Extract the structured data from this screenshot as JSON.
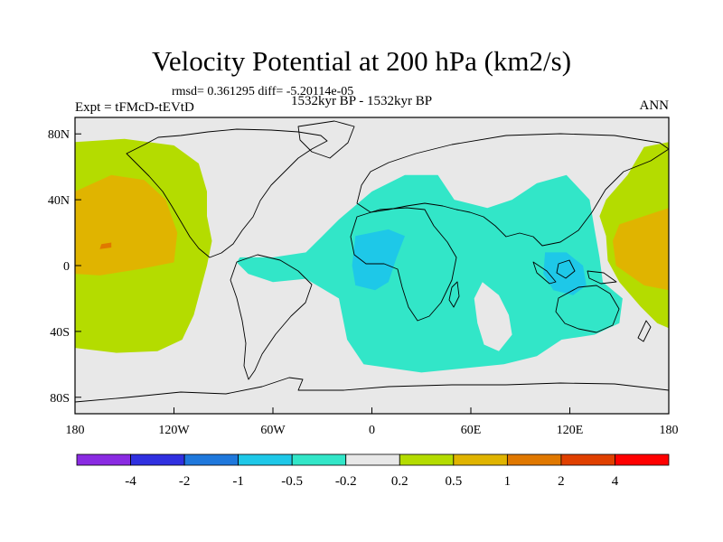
{
  "chart_data": {
    "type": "heatmap",
    "title": "Velocity Potential at 200 hPa (km2/s)",
    "stats_text": "rmsd= 0.361295 diff= -5.20114e-05",
    "left_label": "Expt = tFMcD-tEVtD",
    "center_label": "1532kyr BP - 1532kyr BP",
    "right_label": "ANN",
    "x_ticks": [
      "180",
      "120W",
      "60W",
      "0",
      "60E",
      "120E",
      "180"
    ],
    "x_tick_values": [
      -180,
      -120,
      -60,
      0,
      60,
      120,
      180
    ],
    "y_ticks": [
      "80N",
      "40N",
      "0",
      "40S",
      "80S"
    ],
    "y_tick_values": [
      80,
      40,
      0,
      -40,
      -80
    ],
    "xlim": [
      -180,
      180
    ],
    "ylim": [
      -90,
      90
    ],
    "colorbar": {
      "labels": [
        "-4",
        "-2",
        "-1",
        "-0.5",
        "-0.2",
        "0.2",
        "0.5",
        "1",
        "2",
        "4"
      ],
      "colors": [
        "#8a2be2",
        "#3030e0",
        "#1f78dc",
        "#1ec8e8",
        "#32e6c8",
        "#e8e8e8",
        "#b4dc00",
        "#e0b400",
        "#e07800",
        "#e04000",
        "#ff0000"
      ]
    },
    "regions": [
      {
        "name": "pacific-positive-0.2",
        "level": 0.2,
        "color": "#b4dc00",
        "outline": [
          [
            -180,
            75
          ],
          [
            -150,
            77
          ],
          [
            -120,
            73
          ],
          [
            -105,
            62
          ],
          [
            -100,
            45
          ],
          [
            -100,
            30
          ],
          [
            -97,
            15
          ],
          [
            -100,
            0
          ],
          [
            -104,
            -15
          ],
          [
            -108,
            -30
          ],
          [
            -115,
            -45
          ],
          [
            -130,
            -52
          ],
          [
            -155,
            -53
          ],
          [
            -180,
            -50
          ]
        ]
      },
      {
        "name": "pacific-positive-0.5",
        "level": 0.5,
        "color": "#e0b400",
        "outline": [
          [
            -180,
            45
          ],
          [
            -158,
            55
          ],
          [
            -138,
            52
          ],
          [
            -125,
            40
          ],
          [
            -118,
            20
          ],
          [
            -120,
            2
          ],
          [
            -140,
            -2
          ],
          [
            -165,
            -6
          ],
          [
            -180,
            -5
          ]
        ]
      },
      {
        "name": "pacific-positive-1",
        "level": 1,
        "color": "#e07800",
        "outline": [
          [
            -164,
            13
          ],
          [
            -158,
            14
          ],
          [
            -158,
            11
          ],
          [
            -165,
            10
          ]
        ]
      },
      {
        "name": "westpac-positive-0.2",
        "level": 0.2,
        "color": "#b4dc00",
        "outline": [
          [
            180,
            75
          ],
          [
            165,
            72
          ],
          [
            155,
            55
          ],
          [
            142,
            40
          ],
          [
            138,
            30
          ],
          [
            142,
            18
          ],
          [
            143,
            3
          ],
          [
            150,
            -10
          ],
          [
            163,
            -25
          ],
          [
            173,
            -35
          ],
          [
            180,
            -38
          ]
        ]
      },
      {
        "name": "westpac-positive-0.5",
        "level": 0.5,
        "color": "#e0b400",
        "outline": [
          [
            180,
            35
          ],
          [
            165,
            30
          ],
          [
            150,
            25
          ],
          [
            146,
            15
          ],
          [
            148,
            0
          ],
          [
            165,
            -12
          ],
          [
            180,
            -15
          ]
        ]
      },
      {
        "name": "indo-atlantic-negative-0.2",
        "level": -0.2,
        "color": "#32e6c8",
        "outline": [
          [
            -82,
            2
          ],
          [
            -75,
            -5
          ],
          [
            -60,
            -10
          ],
          [
            -40,
            -8
          ],
          [
            -20,
            -20
          ],
          [
            -15,
            -45
          ],
          [
            -5,
            -60
          ],
          [
            30,
            -65
          ],
          [
            80,
            -60
          ],
          [
            100,
            -55
          ],
          [
            115,
            -45
          ],
          [
            135,
            -42
          ],
          [
            150,
            -35
          ],
          [
            152,
            -20
          ],
          [
            140,
            -10
          ],
          [
            138,
            5
          ],
          [
            135,
            22
          ],
          [
            132,
            40
          ],
          [
            118,
            55
          ],
          [
            100,
            50
          ],
          [
            85,
            40
          ],
          [
            70,
            35
          ],
          [
            50,
            40
          ],
          [
            40,
            55
          ],
          [
            20,
            55
          ],
          [
            0,
            45
          ],
          [
            -20,
            28
          ],
          [
            -30,
            18
          ],
          [
            -40,
            8
          ],
          [
            -60,
            5
          ],
          [
            -80,
            5
          ]
        ]
      },
      {
        "name": "indo-atlantic-hole",
        "level": 0.2,
        "color": "#e8e8e8",
        "outline": [
          [
            67,
            -10
          ],
          [
            77,
            -18
          ],
          [
            83,
            -30
          ],
          [
            85,
            -42
          ],
          [
            77,
            -52
          ],
          [
            68,
            -48
          ],
          [
            64,
            -35
          ],
          [
            62,
            -20
          ]
        ]
      },
      {
        "name": "africa-negative-0.5",
        "level": -0.5,
        "color": "#1ec8e8",
        "outline": [
          [
            -10,
            18
          ],
          [
            10,
            22
          ],
          [
            20,
            18
          ],
          [
            15,
            5
          ],
          [
            10,
            -10
          ],
          [
            2,
            -15
          ],
          [
            -10,
            -12
          ],
          [
            -12,
            0
          ]
        ]
      },
      {
        "name": "maritime-negative-0.5",
        "level": -0.5,
        "color": "#1ec8e8",
        "outline": [
          [
            105,
            8
          ],
          [
            118,
            8
          ],
          [
            128,
            0
          ],
          [
            130,
            -12
          ],
          [
            122,
            -18
          ],
          [
            110,
            -15
          ],
          [
            104,
            -5
          ]
        ]
      }
    ]
  }
}
